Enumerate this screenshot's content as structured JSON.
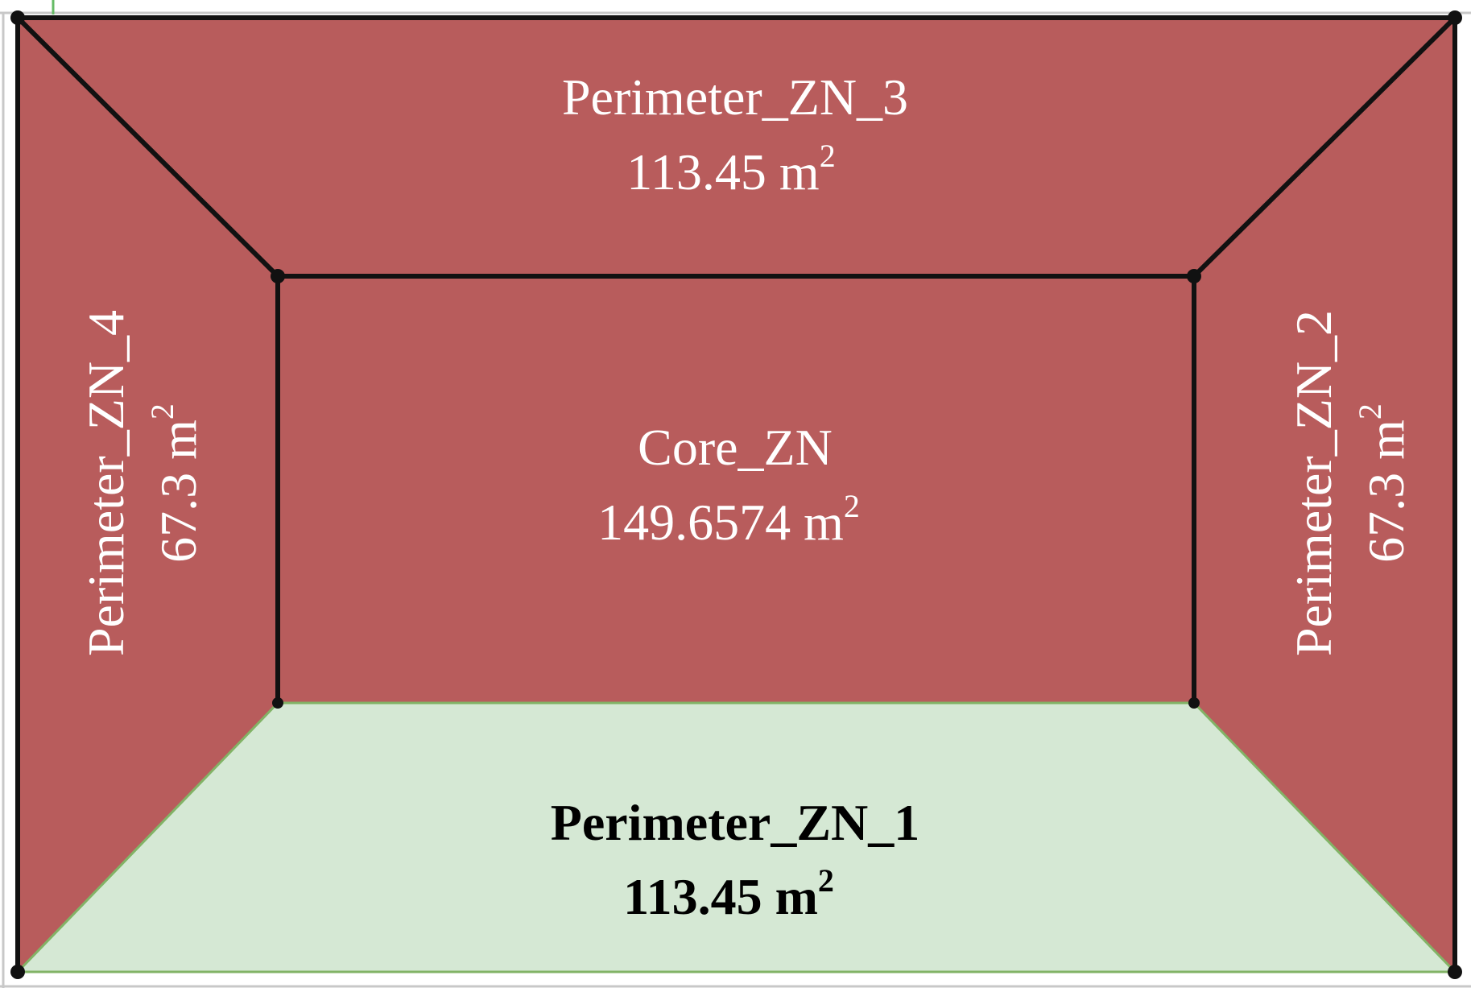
{
  "colors": {
    "unselected_fill": "#b85c5c",
    "selected_fill": "#d5e8d4",
    "selected_edge": "#82b366",
    "edge": "#111111",
    "label_light": "#ffffff",
    "label_dark": "#000000"
  },
  "zones": {
    "perimeter_zn_3": {
      "name": "Perimeter_ZN_3",
      "area": "113.45 m",
      "area_unit_exp": "2",
      "selected": false
    },
    "perimeter_zn_4": {
      "name": "Perimeter_ZN_4",
      "area": "67.3 m",
      "area_unit_exp": "2",
      "selected": false
    },
    "core_zn": {
      "name": "Core_ZN",
      "area": "149.6574 m",
      "area_unit_exp": "2",
      "selected": false
    },
    "perimeter_zn_2": {
      "name": "Perimeter_ZN_2",
      "area": "67.3 m",
      "area_unit_exp": "2",
      "selected": false
    },
    "perimeter_zn_1": {
      "name": "Perimeter_ZN_1",
      "area": "113.45 m",
      "area_unit_exp": "2",
      "selected": true
    }
  }
}
